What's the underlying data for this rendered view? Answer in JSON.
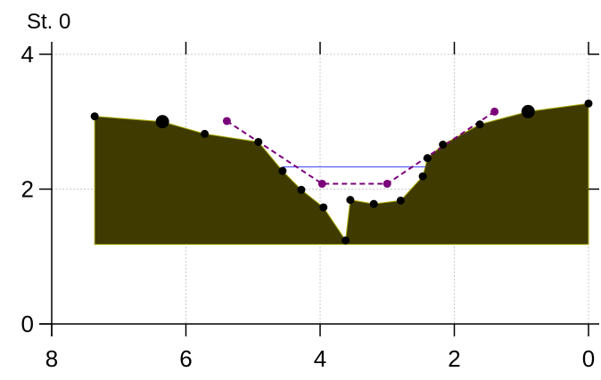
{
  "chart_data": {
    "type": "area",
    "title": "St. 0",
    "xlabel": "",
    "ylabel": "",
    "xlim": [
      8,
      0
    ],
    "ylim": [
      0,
      4
    ],
    "x_ticks": [
      8,
      6,
      4,
      2,
      0
    ],
    "y_ticks": [
      0,
      2,
      4
    ],
    "grid": true,
    "legend": "none",
    "fill_base": 1.18,
    "colors": {
      "fill": "#3f3a00",
      "fill_edge": "#a8a800",
      "points": "#000000",
      "dashed": "#7a007a",
      "water": "#5a5aff",
      "grid": "#c8c8c8"
    },
    "series": [
      {
        "role": "profile",
        "x": [
          7.36,
          6.35,
          5.72,
          4.92,
          4.56,
          4.28,
          3.95,
          3.62,
          3.55,
          3.2,
          2.8,
          2.47,
          2.4,
          2.17,
          1.62,
          0.9,
          0.0
        ],
        "y": [
          3.08,
          3.0,
          2.82,
          2.7,
          2.27,
          1.99,
          1.73,
          1.24,
          1.84,
          1.78,
          1.83,
          2.19,
          2.46,
          2.66,
          2.96,
          3.15,
          3.27
        ],
        "sizes": [
          1,
          2,
          1,
          1,
          1,
          1,
          1,
          1,
          1,
          1,
          1,
          1,
          1,
          1,
          1,
          2,
          1
        ]
      },
      {
        "role": "dashed",
        "x": [
          5.39,
          3.97,
          3.0,
          1.4
        ],
        "y": [
          3.01,
          2.08,
          2.08,
          3.15
        ]
      },
      {
        "role": "water",
        "x": [
          4.56,
          2.43
        ],
        "y": [
          2.33,
          2.33
        ]
      }
    ]
  }
}
